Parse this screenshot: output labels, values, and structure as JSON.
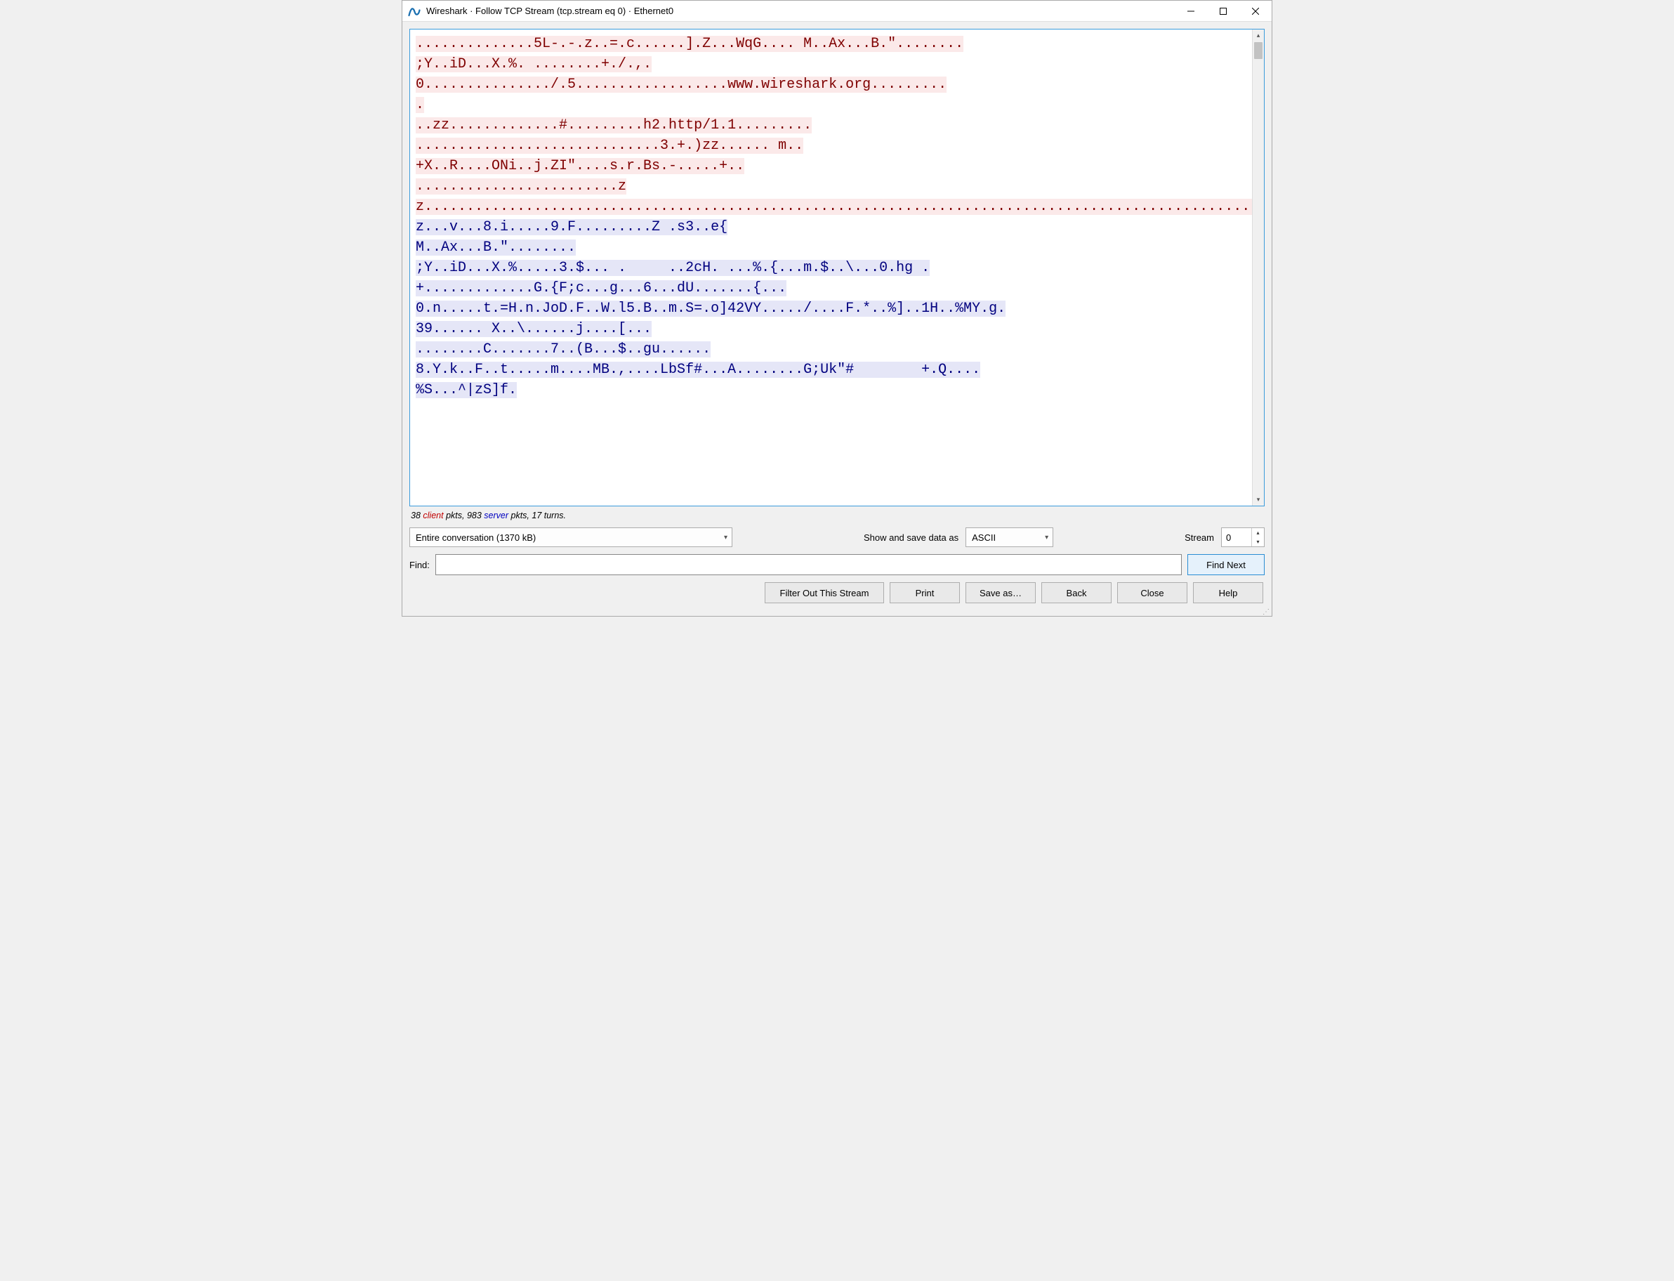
{
  "window": {
    "title": "Wireshark · Follow TCP Stream (tcp.stream eq 0) · Ethernet0"
  },
  "stream": {
    "segments": [
      {
        "dir": "client",
        "text": "..............5L-.-.z..=.c......].Z...WqG.... M..Ax...B.\"........\n;Y..iD...X.%. ........+./.,.\n0.............../.5..................www.wireshark.org.........\n."
      },
      {
        "dir": "client",
        "text": "\n..zz.............#.........h2.http/1.1.........\n.............................3.+.)zz...... m..\n+X..R....ONi..j.ZI\"....s.r.Bs.-.....+.."
      },
      {
        "dir": "client",
        "text": "\n........................zz.............................................................................................................................................................................................................................................................."
      },
      {
        "dir": "server",
        "text": "...............z...v...8.i.....9.F.........Z .s3..e{\nM..Ax...B.\"........"
      },
      {
        "dir": "server",
        "text": "\n;Y..iD...X.%.....3.$... .     ..2cH. ...%.{...m.$..\\...0.hg .\n+.............G.{F;c...g...6...dU.......{..."
      },
      {
        "dir": "server",
        "text": "\n0.n.....t.=H.n.JoD.F..W.l5.B..m.S=.o]42VY...../....F.*..%]..1H..%MY.g.\n39...... X..\\......j....[..."
      },
      {
        "dir": "server",
        "text": "\n........C.......7..(B...$..gu......"
      },
      {
        "dir": "server",
        "text": "\n8.Y.k..F..t.....m....MB.,....LbSf#...A........G;Uk\"#        +.Q....\n%S...^|zS]f."
      }
    ]
  },
  "stats": {
    "client_pkts": "38",
    "client_word": "client",
    "mid1": " pkts, ",
    "server_pkts": "983",
    "server_word": "server",
    "tail": " pkts, 17 turns."
  },
  "controls": {
    "conversation_label": "Entire conversation (1370 kB)",
    "show_as_label": "Show and save data as",
    "format_value": "ASCII",
    "stream_label": "Stream",
    "stream_value": "0",
    "find_label": "Find:",
    "find_value": "",
    "find_next": "Find Next"
  },
  "buttons": {
    "filter_out": "Filter Out This Stream",
    "print": "Print",
    "save_as": "Save as…",
    "back": "Back",
    "close": "Close",
    "help": "Help"
  },
  "colors": {
    "client_bg": "#fbe9e9",
    "client_fg": "#7f0000",
    "server_bg": "#e5e6f7",
    "server_fg": "#00007f",
    "accent": "#2a8dd4"
  }
}
